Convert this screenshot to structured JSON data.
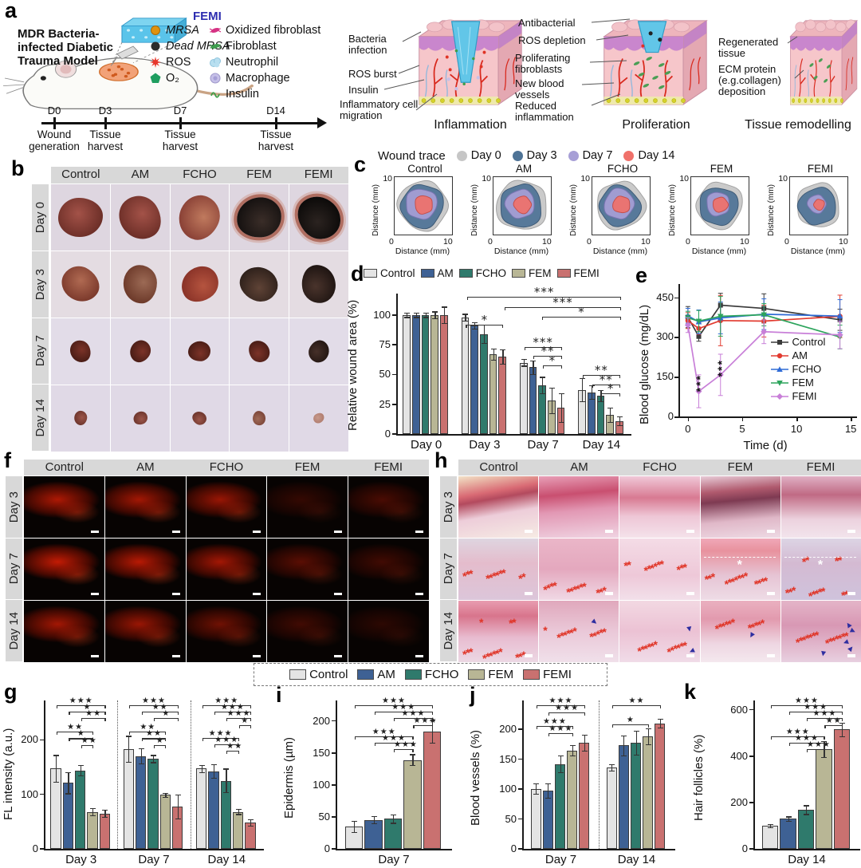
{
  "figure_labels": {
    "a": "a",
    "b": "b",
    "c": "c",
    "d": "d",
    "e": "e",
    "f": "f",
    "g": "g",
    "h": "h",
    "i": "i",
    "j": "j",
    "k": "k"
  },
  "groups": [
    "Control",
    "AM",
    "FCHO",
    "FEM",
    "FEMI"
  ],
  "group_colors": [
    "#e4e4e4",
    "#3e6194",
    "#2f7a6c",
    "#b8b695",
    "#c97170"
  ],
  "panel_a": {
    "model_title": "MDR Bacteria-infected Diabetic Trauma Model",
    "femi_label": "FEMI",
    "legend_col1": [
      {
        "icon": "mrsa-icon",
        "color": "#e0920e",
        "label": "MRSA",
        "italic": true
      },
      {
        "icon": "dead-mrsa-icon",
        "color": "#2b2b2b",
        "label": "Dead MRSA",
        "italic": true
      },
      {
        "icon": "ros-icon",
        "color": "#e8372c",
        "label": "ROS",
        "italic": false
      },
      {
        "icon": "o2-icon",
        "color": "#1f9e60",
        "label": "O₂",
        "italic": false
      }
    ],
    "legend_col2": [
      {
        "icon": "oxidized-fibroblast-icon",
        "color": "#d63384",
        "label": "Oxidized fibroblast",
        "italic": false
      },
      {
        "icon": "fibroblast-icon",
        "color": "#3e9e4e",
        "label": "Fibroblast",
        "italic": false
      },
      {
        "icon": "neutrophil-icon",
        "color": "#b8dff0",
        "label": "Neutrophil",
        "italic": false
      },
      {
        "icon": "macrophage-icon",
        "color": "#c6c0e8",
        "label": "Macrophage",
        "italic": false
      },
      {
        "icon": "insulin-icon",
        "color": "#3f9e49",
        "label": "Insulin",
        "italic": false
      }
    ],
    "timeline": [
      {
        "day": "D0",
        "caption": "Wound generation"
      },
      {
        "day": "D3",
        "caption": "Tissue harvest"
      },
      {
        "day": "D7",
        "caption": "Tissue harvest"
      },
      {
        "day": "D14",
        "caption": "Tissue harvest"
      }
    ],
    "stages": [
      {
        "caption": "Inflammation",
        "labels": [
          "Bacteria infection",
          "ROS burst",
          "Insulin",
          "Inflammatory cell migration"
        ]
      },
      {
        "caption": "Proliferation",
        "labels": [
          "Antibacterial",
          "ROS depletion",
          "Proliferating fibroblasts",
          "New blood vessels",
          "Reduced inflammation"
        ]
      },
      {
        "caption": "Tissue remodelling",
        "labels": [
          "Regenerated tissue",
          "ECM protein (e.g.collagen) deposition"
        ]
      }
    ]
  },
  "panel_b": {
    "col_headers": [
      "Control",
      "AM",
      "FCHO",
      "FEM",
      "FEMI"
    ],
    "row_labels": [
      "Day 0",
      "Day 3",
      "Day 7",
      "Day 14"
    ]
  },
  "panel_f": {
    "col_headers": [
      "Control",
      "AM",
      "FCHO",
      "FEM",
      "FEMI"
    ],
    "row_labels": [
      "Day 3",
      "Day 7",
      "Day 14"
    ]
  },
  "panel_h": {
    "col_headers": [
      "Control",
      "AM",
      "FCHO",
      "FEM",
      "FEMI"
    ],
    "row_labels": [
      "Day 3",
      "Day 7",
      "Day 14"
    ]
  },
  "shared_legend": {
    "items": [
      "Control",
      "AM",
      "FCHO",
      "FEM",
      "FEMI"
    ]
  },
  "chart_data": {
    "c": {
      "type": "outline-traces",
      "title": "Wound trace",
      "days": [
        "Day 0",
        "Day 3",
        "Day 7",
        "Day 14"
      ],
      "day_colors": [
        "#c6c6c6",
        "#4e7396",
        "#a79fd6",
        "#f0716a"
      ],
      "day_strokes": [
        "#9a9a9a",
        "#32506e",
        "#7e74b5",
        "#c8483f"
      ],
      "xlabel": "Distance (mm)",
      "ylabel": "Distance (mm)",
      "xlim": [
        0,
        10
      ],
      "ylim": [
        0,
        10
      ],
      "plots": [
        {
          "group": "Control",
          "radii_mm": [
            4.6,
            4.0,
            2.9,
            1.7
          ]
        },
        {
          "group": "AM",
          "radii_mm": [
            4.7,
            4.0,
            2.7,
            1.6
          ]
        },
        {
          "group": "FCHO",
          "radii_mm": [
            4.5,
            3.8,
            2.8,
            1.6
          ]
        },
        {
          "group": "FEM",
          "radii_mm": [
            4.3,
            3.6,
            2.2,
            1.4
          ]
        },
        {
          "group": "FEMI",
          "radii_mm": [
            4.1,
            3.5,
            1.7,
            1.0
          ]
        }
      ]
    },
    "d": {
      "type": "bar",
      "ylabel": "Relative wound area (%)",
      "categories": [
        "Day 0",
        "Day 3",
        "Day 7",
        "Day 14"
      ],
      "ylim": [
        0,
        118
      ],
      "yticks": [
        0,
        25,
        50,
        75,
        100
      ],
      "series": [
        {
          "name": "Control",
          "values": [
            100,
            98,
            60,
            37
          ],
          "errors": [
            2,
            3,
            3,
            10
          ]
        },
        {
          "name": "AM",
          "values": [
            100,
            91,
            56,
            35
          ],
          "errors": [
            2,
            3,
            6,
            6
          ]
        },
        {
          "name": "FCHO",
          "values": [
            100,
            84,
            41,
            32
          ],
          "errors": [
            2,
            8,
            7,
            5
          ]
        },
        {
          "name": "FEM",
          "values": [
            100,
            67,
            28,
            16
          ],
          "errors": [
            3,
            5,
            11,
            6
          ]
        },
        {
          "name": "FEMI",
          "values": [
            100,
            65,
            22,
            11
          ],
          "errors": [
            7,
            6,
            12,
            4
          ]
        }
      ],
      "sig": [
        {
          "x1": 0.3,
          "x2": 0.96,
          "y": 0.975,
          "stars": "***"
        },
        {
          "x1": 0.46,
          "x2": 0.96,
          "y": 0.905,
          "stars": "***"
        },
        {
          "x1": 0.62,
          "x2": 0.96,
          "y": 0.835,
          "stars": "*"
        },
        {
          "x1": 0.295,
          "x2": 0.455,
          "y": 0.78,
          "stars": "*"
        },
        {
          "x1": 0.545,
          "x2": 0.705,
          "y": 0.62,
          "stars": "***"
        },
        {
          "x1": 0.585,
          "x2": 0.705,
          "y": 0.555,
          "stars": "**"
        },
        {
          "x1": 0.625,
          "x2": 0.705,
          "y": 0.49,
          "stars": "*"
        },
        {
          "x1": 0.795,
          "x2": 0.955,
          "y": 0.42,
          "stars": "**"
        },
        {
          "x1": 0.835,
          "x2": 0.955,
          "y": 0.355,
          "stars": "**"
        },
        {
          "x1": 0.875,
          "x2": 0.955,
          "y": 0.29,
          "stars": "*"
        }
      ]
    },
    "e": {
      "type": "line",
      "ylabel": "Blood glucose (mg/dL)",
      "xlabel": "Time (d)",
      "x": [
        0,
        1,
        3,
        7,
        14
      ],
      "xlim": [
        -0.8,
        15.5
      ],
      "ylim": [
        0,
        500
      ],
      "xticks": [
        0,
        5,
        10,
        15
      ],
      "yticks": [
        0,
        150,
        300,
        450
      ],
      "series": [
        {
          "name": "Control",
          "marker": "square",
          "color": "#3a3a3a",
          "values": [
            375,
            302,
            420,
            408,
            365
          ],
          "errors": [
            40,
            18,
            45,
            55,
            40
          ]
        },
        {
          "name": "AM",
          "marker": "circle",
          "color": "#e23b30",
          "values": [
            362,
            332,
            362,
            360,
            378
          ],
          "errors": [
            30,
            22,
            95,
            60,
            80
          ]
        },
        {
          "name": "FCHO",
          "marker": "triangle",
          "color": "#2f6bd6",
          "values": [
            380,
            357,
            372,
            386,
            379
          ],
          "errors": [
            28,
            45,
            60,
            58,
            62
          ]
        },
        {
          "name": "FEM",
          "marker": "triangle-down",
          "color": "#2ca45c",
          "values": [
            372,
            360,
            378,
            384,
            300
          ],
          "errors": [
            25,
            40,
            75,
            42,
            45
          ]
        },
        {
          "name": "FEMI",
          "marker": "diamond",
          "color": "#c87fd8",
          "values": [
            345,
            95,
            157,
            320,
            308
          ],
          "errors": [
            28,
            62,
            78,
            45,
            52
          ]
        }
      ],
      "annotations": [
        {
          "x": 1,
          "y": 40,
          "stars": "***"
        },
        {
          "x": 3,
          "y": 95,
          "stars": "***"
        }
      ]
    },
    "g": {
      "type": "bar",
      "ylabel": "FL intensity (a.u.)",
      "categories": [
        "Day 3",
        "Day 7",
        "Day 14"
      ],
      "ylim": [
        0,
        272
      ],
      "yticks": [
        0,
        100,
        200
      ],
      "separators": [
        0.3333,
        0.6667
      ],
      "series": [
        {
          "name": "Control",
          "values": [
            147,
            183,
            147
          ],
          "errors": [
            25,
            24,
            7
          ]
        },
        {
          "name": "AM",
          "values": [
            121,
            170,
            142
          ],
          "errors": [
            20,
            14,
            13
          ]
        },
        {
          "name": "FCHO",
          "values": [
            144,
            165,
            125
          ],
          "errors": [
            10,
            7,
            22
          ]
        },
        {
          "name": "FEM",
          "values": [
            68,
            99,
            68
          ],
          "errors": [
            7,
            4,
            5
          ]
        },
        {
          "name": "FEMI",
          "values": [
            65,
            77,
            48
          ],
          "errors": [
            7,
            22,
            6
          ]
        }
      ],
      "sig": [
        {
          "x1": 0.055,
          "x2": 0.279,
          "y": 0.97,
          "stars": "★★★"
        },
        {
          "x1": 0.111,
          "x2": 0.279,
          "y": 0.925,
          "stars": "★"
        },
        {
          "x1": 0.167,
          "x2": 0.279,
          "y": 0.88,
          "stars": "★★"
        },
        {
          "x1": 0.055,
          "x2": 0.223,
          "y": 0.79,
          "stars": "★★"
        },
        {
          "x1": 0.111,
          "x2": 0.223,
          "y": 0.745,
          "stars": "★"
        },
        {
          "x1": 0.167,
          "x2": 0.223,
          "y": 0.7,
          "stars": "★★"
        },
        {
          "x1": 0.388,
          "x2": 0.612,
          "y": 0.97,
          "stars": "★★★"
        },
        {
          "x1": 0.444,
          "x2": 0.612,
          "y": 0.925,
          "stars": "★★"
        },
        {
          "x1": 0.5,
          "x2": 0.612,
          "y": 0.88,
          "stars": "★"
        },
        {
          "x1": 0.388,
          "x2": 0.556,
          "y": 0.79,
          "stars": "★★"
        },
        {
          "x1": 0.444,
          "x2": 0.556,
          "y": 0.745,
          "stars": "★★"
        },
        {
          "x1": 0.5,
          "x2": 0.556,
          "y": 0.7,
          "stars": "★"
        },
        {
          "x1": 0.721,
          "x2": 0.945,
          "y": 0.97,
          "stars": "★★★"
        },
        {
          "x1": 0.777,
          "x2": 0.945,
          "y": 0.925,
          "stars": "★★★"
        },
        {
          "x1": 0.833,
          "x2": 0.945,
          "y": 0.88,
          "stars": "★★★"
        },
        {
          "x1": 0.889,
          "x2": 0.945,
          "y": 0.835,
          "stars": "★"
        },
        {
          "x1": 0.721,
          "x2": 0.889,
          "y": 0.75,
          "stars": "★★★"
        },
        {
          "x1": 0.777,
          "x2": 0.889,
          "y": 0.705,
          "stars": "★★★"
        },
        {
          "x1": 0.833,
          "x2": 0.889,
          "y": 0.66,
          "stars": "★★"
        }
      ]
    },
    "i": {
      "type": "bar",
      "ylabel": "Epidermis (µm)",
      "categories": [
        "Day 7"
      ],
      "ylim": [
        0,
        232
      ],
      "yticks": [
        0,
        50,
        100,
        150,
        200
      ],
      "series": [
        {
          "name": "Control",
          "values": [
            35
          ],
          "errors": [
            9
          ]
        },
        {
          "name": "AM",
          "values": [
            45
          ],
          "errors": [
            6
          ]
        },
        {
          "name": "FCHO",
          "values": [
            47
          ],
          "errors": [
            7
          ]
        },
        {
          "name": "FEM",
          "values": [
            139
          ],
          "errors": [
            9
          ]
        },
        {
          "name": "FEMI",
          "values": [
            183
          ],
          "errors": [
            18
          ]
        }
      ],
      "sig": [
        {
          "x1": 0.16,
          "x2": 0.84,
          "y": 0.97,
          "stars": "★★★"
        },
        {
          "x1": 0.33,
          "x2": 0.84,
          "y": 0.925,
          "stars": "★★★"
        },
        {
          "x1": 0.5,
          "x2": 0.84,
          "y": 0.88,
          "stars": "★★★"
        },
        {
          "x1": 0.67,
          "x2": 0.84,
          "y": 0.835,
          "stars": "★★★"
        },
        {
          "x1": 0.16,
          "x2": 0.67,
          "y": 0.76,
          "stars": "★★★"
        },
        {
          "x1": 0.33,
          "x2": 0.67,
          "y": 0.715,
          "stars": "★★★"
        },
        {
          "x1": 0.5,
          "x2": 0.67,
          "y": 0.67,
          "stars": "★★★"
        }
      ]
    },
    "j": {
      "type": "bar",
      "ylabel": "Blood vessels (%)",
      "categories": [
        "Day 7",
        "Day 14"
      ],
      "ylim": [
        0,
        248
      ],
      "yticks": [
        0,
        50,
        100,
        150,
        200
      ],
      "separators": [
        0.5
      ],
      "series": [
        {
          "name": "Control",
          "values": [
            100,
            136
          ],
          "errors": [
            9,
            6
          ]
        },
        {
          "name": "AM",
          "values": [
            97,
            173
          ],
          "errors": [
            12,
            17
          ]
        },
        {
          "name": "FCHO",
          "values": [
            142,
            177
          ],
          "errors": [
            14,
            20
          ]
        },
        {
          "name": "FEM",
          "values": [
            164,
            188
          ],
          "errors": [
            9,
            14
          ]
        },
        {
          "name": "FEMI",
          "values": [
            177,
            210
          ],
          "errors": [
            14,
            8
          ]
        }
      ],
      "sig": [
        {
          "x1": 0.09,
          "x2": 0.41,
          "y": 0.97,
          "stars": "★★★"
        },
        {
          "x1": 0.17,
          "x2": 0.41,
          "y": 0.92,
          "stars": "★★★"
        },
        {
          "x1": 0.09,
          "x2": 0.33,
          "y": 0.83,
          "stars": "★★★"
        },
        {
          "x1": 0.17,
          "x2": 0.33,
          "y": 0.78,
          "stars": "★★★"
        },
        {
          "x1": 0.59,
          "x2": 0.91,
          "y": 0.97,
          "stars": "★★"
        },
        {
          "x1": 0.59,
          "x2": 0.83,
          "y": 0.84,
          "stars": "★"
        }
      ]
    },
    "k": {
      "type": "bar",
      "ylabel": "Hair follicles (%)",
      "categories": [
        "Day 14"
      ],
      "ylim": [
        0,
        640
      ],
      "yticks": [
        0,
        200,
        400,
        600
      ],
      "series": [
        {
          "name": "Control",
          "values": [
            100
          ],
          "errors": [
            8
          ]
        },
        {
          "name": "AM",
          "values": [
            130
          ],
          "errors": [
            10
          ]
        },
        {
          "name": "FCHO",
          "values": [
            168
          ],
          "errors": [
            20
          ]
        },
        {
          "name": "FEM",
          "values": [
            430
          ],
          "errors": [
            35
          ]
        },
        {
          "name": "FEMI",
          "values": [
            515
          ],
          "errors": [
            30
          ]
        }
      ],
      "sig": [
        {
          "x1": 0.16,
          "x2": 0.84,
          "y": 0.97,
          "stars": "★★★"
        },
        {
          "x1": 0.33,
          "x2": 0.84,
          "y": 0.925,
          "stars": "★★★"
        },
        {
          "x1": 0.5,
          "x2": 0.84,
          "y": 0.88,
          "stars": "★★★"
        },
        {
          "x1": 0.67,
          "x2": 0.84,
          "y": 0.835,
          "stars": "★★"
        },
        {
          "x1": 0.16,
          "x2": 0.67,
          "y": 0.76,
          "stars": "★★★"
        },
        {
          "x1": 0.33,
          "x2": 0.67,
          "y": 0.715,
          "stars": "★★★"
        },
        {
          "x1": 0.5,
          "x2": 0.67,
          "y": 0.67,
          "stars": "★★★"
        }
      ]
    }
  }
}
